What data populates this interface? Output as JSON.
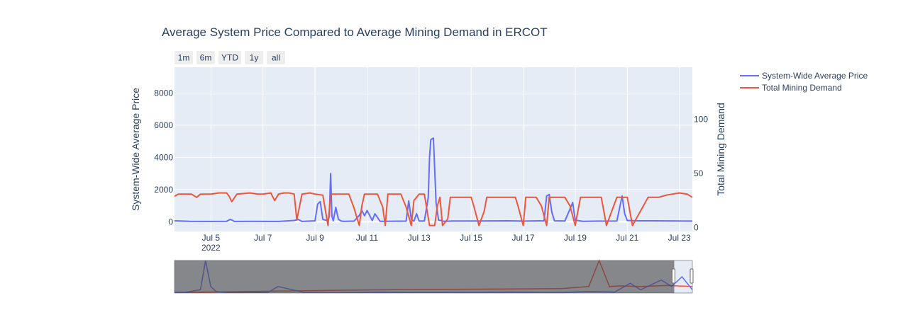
{
  "chart_data": {
    "type": "line",
    "title": "Average System Price Compared to Average Mining Demand in ERCOT",
    "y_left_label": "System-Wide Average Price",
    "y_right_label": "Total Mining Demand",
    "y_left_range": [
      -600,
      9600
    ],
    "y_right_range": [
      -3.5,
      148
    ],
    "y_left_ticks": [
      0,
      2000,
      4000,
      6000,
      8000
    ],
    "y_right_ticks": [
      0,
      50,
      100
    ],
    "x_range_days": [
      3.6,
      23.5
    ],
    "x_ticks": [
      {
        "day": 5,
        "label": "Jul 5",
        "sublabel": "2022"
      },
      {
        "day": 7,
        "label": "Jul 7"
      },
      {
        "day": 9,
        "label": "Jul 9"
      },
      {
        "day": 11,
        "label": "Jul 11"
      },
      {
        "day": 13,
        "label": "Jul 13"
      },
      {
        "day": 15,
        "label": "Jul 15"
      },
      {
        "day": 17,
        "label": "Jul 17"
      },
      {
        "day": 19,
        "label": "Jul 19"
      },
      {
        "day": 21,
        "label": "Jul 21"
      },
      {
        "day": 23,
        "label": "Jul 23"
      }
    ],
    "series": [
      {
        "name": "System-Wide Average Price",
        "color": "#636efa",
        "axis": "left",
        "x": [
          3.6,
          4.2,
          4.9,
          5.6,
          5.75,
          5.9,
          6.6,
          7.6,
          8.2,
          8.35,
          8.5,
          9.0,
          9.1,
          9.2,
          9.3,
          9.5,
          9.55,
          9.6,
          9.65,
          9.7,
          9.8,
          9.9,
          10.0,
          10.1,
          10.5,
          10.7,
          10.8,
          10.9,
          11.0,
          11.2,
          11.3,
          11.5,
          12.5,
          12.6,
          12.7,
          12.8,
          12.9,
          13.0,
          13.2,
          13.35,
          13.4,
          13.45,
          13.55,
          13.65,
          13.75,
          13.85,
          13.9,
          14.0,
          14.3,
          15.3,
          16.4,
          17.0,
          17.8,
          17.9,
          18.0,
          18.1,
          18.2,
          18.6,
          18.8,
          18.9,
          19.0,
          19.3,
          19.9,
          20.6,
          20.8,
          20.9,
          21.0,
          21.3,
          22.0,
          23.5
        ],
        "y": [
          60,
          30,
          20,
          30,
          150,
          20,
          30,
          20,
          80,
          150,
          20,
          60,
          1100,
          1250,
          150,
          60,
          350,
          3000,
          350,
          60,
          900,
          150,
          50,
          30,
          40,
          400,
          700,
          380,
          700,
          80,
          500,
          30,
          40,
          1300,
          150,
          40,
          500,
          50,
          50,
          1500,
          4000,
          5100,
          5200,
          1200,
          100,
          80,
          40,
          30,
          50,
          50,
          60,
          40,
          60,
          1600,
          1700,
          600,
          60,
          50,
          800,
          1200,
          100,
          30,
          40,
          50,
          1600,
          500,
          80,
          60,
          60,
          40
        ]
      },
      {
        "name": "Total Mining Demand",
        "color": "#ef553b",
        "axis": "right",
        "x": [
          3.6,
          3.75,
          4.0,
          4.25,
          4.45,
          4.6,
          5.0,
          5.3,
          5.6,
          5.7,
          5.8,
          6.0,
          6.5,
          6.8,
          7.0,
          7.3,
          7.45,
          7.6,
          7.8,
          8.0,
          8.2,
          8.3,
          8.5,
          8.8,
          9.0,
          9.3,
          9.5,
          9.6,
          9.7,
          10.0,
          10.3,
          10.5,
          10.7,
          10.8,
          10.9,
          11.0,
          11.4,
          11.6,
          11.7,
          11.8,
          12.0,
          12.3,
          12.5,
          12.7,
          12.8,
          13.0,
          13.2,
          13.4,
          13.6,
          13.7,
          13.8,
          13.9,
          14.1,
          14.2,
          14.5,
          14.8,
          15.0,
          15.1,
          15.3,
          15.5,
          15.6,
          15.9,
          16.1,
          16.4,
          16.7,
          16.8,
          17.0,
          17.1,
          17.3,
          17.5,
          17.7,
          17.9,
          18.0,
          18.3,
          18.6,
          18.8,
          19.0,
          19.2,
          19.5,
          19.8,
          20.0,
          20.2,
          20.6,
          20.8,
          21.0,
          21.2,
          21.8,
          22.0,
          22.2,
          22.5,
          23.0,
          23.3,
          23.5
        ],
        "y": [
          29,
          31,
          31,
          31,
          28,
          31,
          31,
          32,
          32,
          29,
          24,
          31,
          32,
          31,
          31,
          32,
          25,
          31,
          32,
          32,
          31,
          7,
          31,
          32,
          31,
          30,
          2,
          31,
          31,
          31,
          31,
          18,
          2,
          20,
          31,
          31,
          31,
          19,
          2,
          31,
          31,
          31,
          19,
          2,
          25,
          31,
          31,
          2,
          2,
          20,
          28,
          2,
          8,
          28,
          28,
          28,
          28,
          20,
          2,
          15,
          28,
          28,
          28,
          28,
          28,
          20,
          2,
          28,
          28,
          28,
          20,
          2,
          28,
          28,
          28,
          20,
          2,
          28,
          28,
          28,
          28,
          2,
          28,
          28,
          28,
          2,
          28,
          28,
          28,
          30,
          32,
          31,
          28
        ]
      }
    ],
    "rangeselector_buttons": [
      "1m",
      "6m",
      "YTD",
      "1y",
      "all"
    ],
    "slider": {
      "shaded_fraction": 0.965,
      "mini_price_x": [
        0,
        0.02,
        0.05,
        0.06,
        0.07,
        0.08,
        0.1,
        0.15,
        0.18,
        0.2,
        0.25,
        0.3,
        0.35,
        0.4,
        0.45,
        0.5,
        0.55,
        0.6,
        0.65,
        0.7,
        0.75,
        0.8,
        0.85,
        0.88,
        0.9,
        0.92,
        0.94,
        0.96,
        0.98,
        1.0
      ],
      "mini_price_y": [
        0.03,
        0.02,
        0.1,
        1.0,
        0.2,
        0.05,
        0.02,
        0.02,
        0.02,
        0.2,
        0.02,
        0.02,
        0.02,
        0.03,
        0.02,
        0.02,
        0.02,
        0.02,
        0.03,
        0.02,
        0.02,
        0.05,
        0.03,
        0.3,
        0.1,
        0.25,
        0.4,
        0.2,
        0.5,
        0.1
      ],
      "mini_demand_x": [
        0,
        0.1,
        0.2,
        0.3,
        0.4,
        0.5,
        0.6,
        0.7,
        0.75,
        0.8,
        0.82,
        0.84,
        0.86,
        0.9,
        0.95,
        1.0
      ],
      "mini_demand_y": [
        0.02,
        0.04,
        0.06,
        0.08,
        0.1,
        0.11,
        0.12,
        0.13,
        0.14,
        0.2,
        1.0,
        0.2,
        0.22,
        0.2,
        0.23,
        0.2
      ]
    }
  }
}
